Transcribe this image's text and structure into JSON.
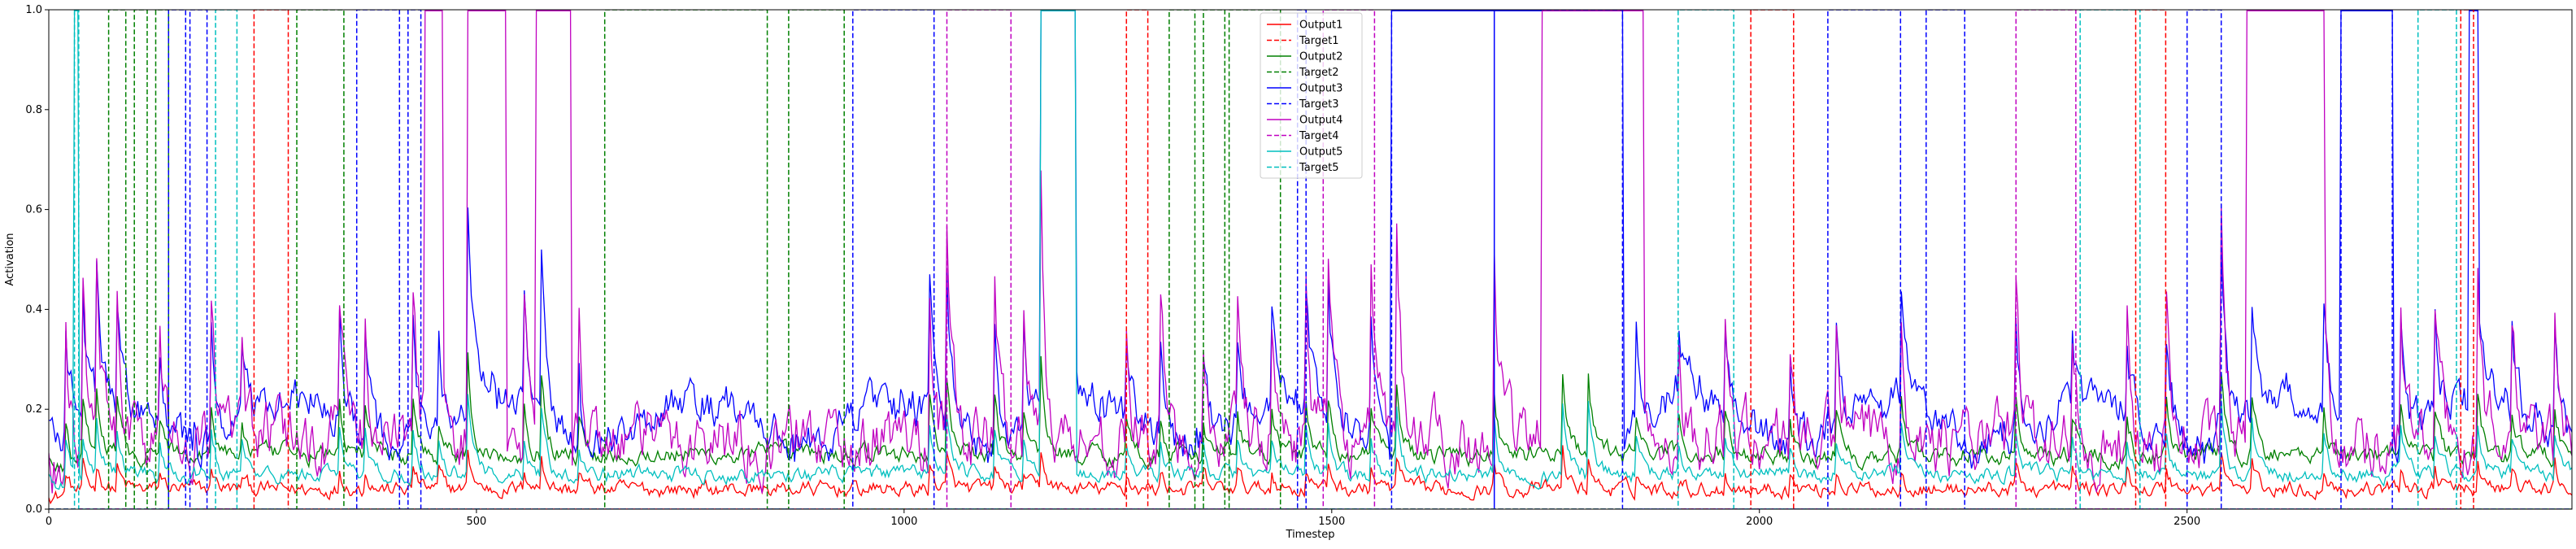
{
  "chart_data": {
    "type": "line",
    "title": "",
    "xlabel": "Timestep",
    "ylabel": "Activation",
    "xlim": [
      0,
      2950
    ],
    "ylim": [
      0,
      1.0
    ],
    "xticks": [
      0,
      500,
      1000,
      1500,
      2000,
      2500
    ],
    "yticks": [
      0.0,
      0.2,
      0.4,
      0.6,
      0.8,
      1.0
    ],
    "xtick_labels": [
      "0",
      "500",
      "1000",
      "1500",
      "2000",
      "2500"
    ],
    "ytick_labels": [
      "0.0",
      "0.2",
      "0.4",
      "0.6",
      "0.8",
      "1.0"
    ],
    "grid": false,
    "legend_position": "top-center",
    "series": [
      {
        "name": "Output1",
        "color": "#ff0000",
        "style": "solid",
        "base": 0.04,
        "noise": 0.012
      },
      {
        "name": "Target1",
        "color": "#ff0000",
        "style": "dashed"
      },
      {
        "name": "Output2",
        "color": "#008000",
        "style": "solid",
        "base": 0.11,
        "noise": 0.015
      },
      {
        "name": "Target2",
        "color": "#008000",
        "style": "dashed"
      },
      {
        "name": "Output3",
        "color": "#0000ff",
        "style": "solid",
        "base": 0.18,
        "noise": 0.03
      },
      {
        "name": "Target3",
        "color": "#0000ff",
        "style": "dashed"
      },
      {
        "name": "Output4",
        "color": "#c000c0",
        "style": "solid",
        "base": 0.14,
        "noise": 0.05
      },
      {
        "name": "Target4",
        "color": "#c000c0",
        "style": "dashed"
      },
      {
        "name": "Output5",
        "color": "#00bfbf",
        "style": "solid",
        "base": 0.07,
        "noise": 0.012
      },
      {
        "name": "Target5",
        "color": "#00bfbf",
        "style": "dashed"
      }
    ],
    "target_intervals": {
      "Target1": [
        [
          240,
          280
        ],
        [
          1260,
          1285
        ],
        [
          1990,
          2040
        ],
        [
          2440,
          2475
        ],
        [
          2820,
          2835
        ]
      ],
      "Target2": [
        [
          70,
          90
        ],
        [
          100,
          115
        ],
        [
          125,
          140
        ],
        [
          290,
          345
        ],
        [
          650,
          840
        ],
        [
          865,
          930
        ],
        [
          1310,
          1340
        ],
        [
          1350,
          1375
        ],
        [
          1380,
          1440
        ]
      ],
      "Target3": [
        [
          140,
          160
        ],
        [
          165,
          185
        ],
        [
          360,
          410
        ],
        [
          420,
          435
        ],
        [
          940,
          1035
        ],
        [
          1460,
          1470
        ],
        [
          1570,
          1690
        ],
        [
          1690,
          1840
        ],
        [
          2080,
          2165
        ],
        [
          2195,
          2240
        ],
        [
          2500,
          2540
        ],
        [
          2680,
          2740
        ]
      ],
      "Target4": [
        [
          1050,
          1125
        ],
        [
          1490,
          1550
        ],
        [
          2300,
          2370
        ]
      ],
      "Target5": [
        [
          30,
          35
        ],
        [
          195,
          220
        ],
        [
          1905,
          1970
        ],
        [
          2375,
          2445
        ],
        [
          2770,
          2815
        ]
      ]
    },
    "output_plateaus": {
      "Output3": [
        [
          1160,
          1200
        ],
        [
          1570,
          1690
        ],
        [
          1690,
          1840
        ],
        [
          2680,
          2740
        ],
        [
          2830,
          2840
        ]
      ],
      "Output4": [
        [
          440,
          460
        ],
        [
          490,
          535
        ],
        [
          570,
          610
        ],
        [
          1745,
          1865
        ],
        [
          2570,
          2660
        ]
      ],
      "Output5": [
        [
          30,
          35
        ],
        [
          1160,
          1200
        ]
      ]
    },
    "spike_events": [
      [
        20,
        0.29
      ],
      [
        40,
        0.32
      ],
      [
        55,
        0.44
      ],
      [
        80,
        0.3
      ],
      [
        130,
        0.22
      ],
      [
        190,
        0.3
      ],
      [
        225,
        0.22
      ],
      [
        340,
        0.27
      ],
      [
        370,
        0.28
      ],
      [
        425,
        0.36
      ],
      [
        455,
        0.28
      ],
      [
        490,
        0.52
      ],
      [
        555,
        0.33
      ],
      [
        575,
        0.55
      ],
      [
        620,
        0.22
      ],
      [
        1030,
        0.34
      ],
      [
        1050,
        0.4
      ],
      [
        1105,
        0.38
      ],
      [
        1140,
        0.24
      ],
      [
        1160,
        0.53
      ],
      [
        1260,
        0.2
      ],
      [
        1300,
        0.22
      ],
      [
        1350,
        0.2
      ],
      [
        1390,
        0.23
      ],
      [
        1430,
        0.24
      ],
      [
        1470,
        0.31
      ],
      [
        1495,
        0.42
      ],
      [
        1545,
        0.34
      ],
      [
        1575,
        0.48
      ],
      [
        1690,
        0.38
      ],
      [
        1770,
        0.5
      ],
      [
        1800,
        0.45
      ],
      [
        1855,
        0.28
      ],
      [
        1905,
        0.22
      ],
      [
        1960,
        0.24
      ],
      [
        2035,
        0.23
      ],
      [
        2090,
        0.24
      ],
      [
        2165,
        0.38
      ],
      [
        2300,
        0.3
      ],
      [
        2365,
        0.27
      ],
      [
        2430,
        0.22
      ],
      [
        2475,
        0.32
      ],
      [
        2540,
        0.45
      ],
      [
        2575,
        0.39
      ],
      [
        2660,
        0.28
      ],
      [
        2750,
        0.3
      ],
      [
        2790,
        0.3
      ],
      [
        2840,
        0.33
      ],
      [
        2880,
        0.25
      ],
      [
        2930,
        0.28
      ]
    ]
  }
}
